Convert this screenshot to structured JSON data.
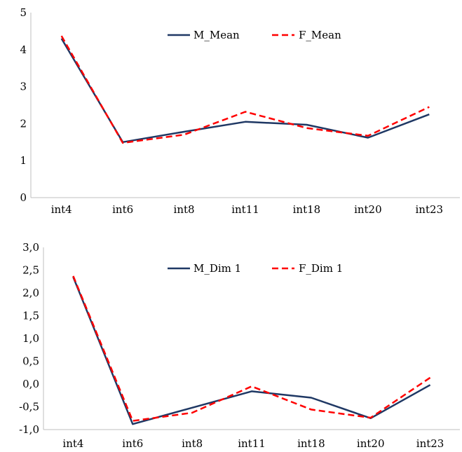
{
  "chart_data": [
    {
      "type": "line",
      "title": "",
      "xlabel": "",
      "ylabel": "",
      "categories": [
        "int4",
        "int6",
        "int8",
        "int11",
        "int18",
        "int20",
        "int23"
      ],
      "y_ticks": [
        "0",
        "1",
        "2",
        "3",
        "4",
        "5"
      ],
      "ylim": [
        0,
        5
      ],
      "grid": false,
      "legend_position": "top-center",
      "series": [
        {
          "name": "M_Mean",
          "values": [
            4.3,
            1.5,
            1.78,
            2.05,
            1.97,
            1.62,
            2.25
          ],
          "color": "#1f3864",
          "dash": "solid"
        },
        {
          "name": "F_Mean",
          "values": [
            4.37,
            1.48,
            1.7,
            2.32,
            1.88,
            1.67,
            2.45
          ],
          "color": "#ff0000",
          "dash": "dashed"
        }
      ]
    },
    {
      "type": "line",
      "title": "",
      "xlabel": "",
      "ylabel": "",
      "categories": [
        "int4",
        "int6",
        "int8",
        "int11",
        "int18",
        "int20",
        "int23"
      ],
      "y_ticks": [
        "-1,0",
        "-0,5",
        "0,0",
        "0,5",
        "1,0",
        "1,5",
        "2,0",
        "2,5",
        "3,0"
      ],
      "ylim": [
        -1.0,
        3.0
      ],
      "grid": false,
      "legend_position": "top-center",
      "series": [
        {
          "name": "M_Dim 1",
          "values": [
            2.35,
            -0.88,
            -0.52,
            -0.16,
            -0.3,
            -0.75,
            -0.02
          ],
          "color": "#1f3864",
          "dash": "solid"
        },
        {
          "name": "F_Dim 1",
          "values": [
            2.37,
            -0.81,
            -0.63,
            -0.05,
            -0.56,
            -0.74,
            0.14
          ],
          "color": "#ff0000",
          "dash": "dashed"
        }
      ]
    }
  ]
}
